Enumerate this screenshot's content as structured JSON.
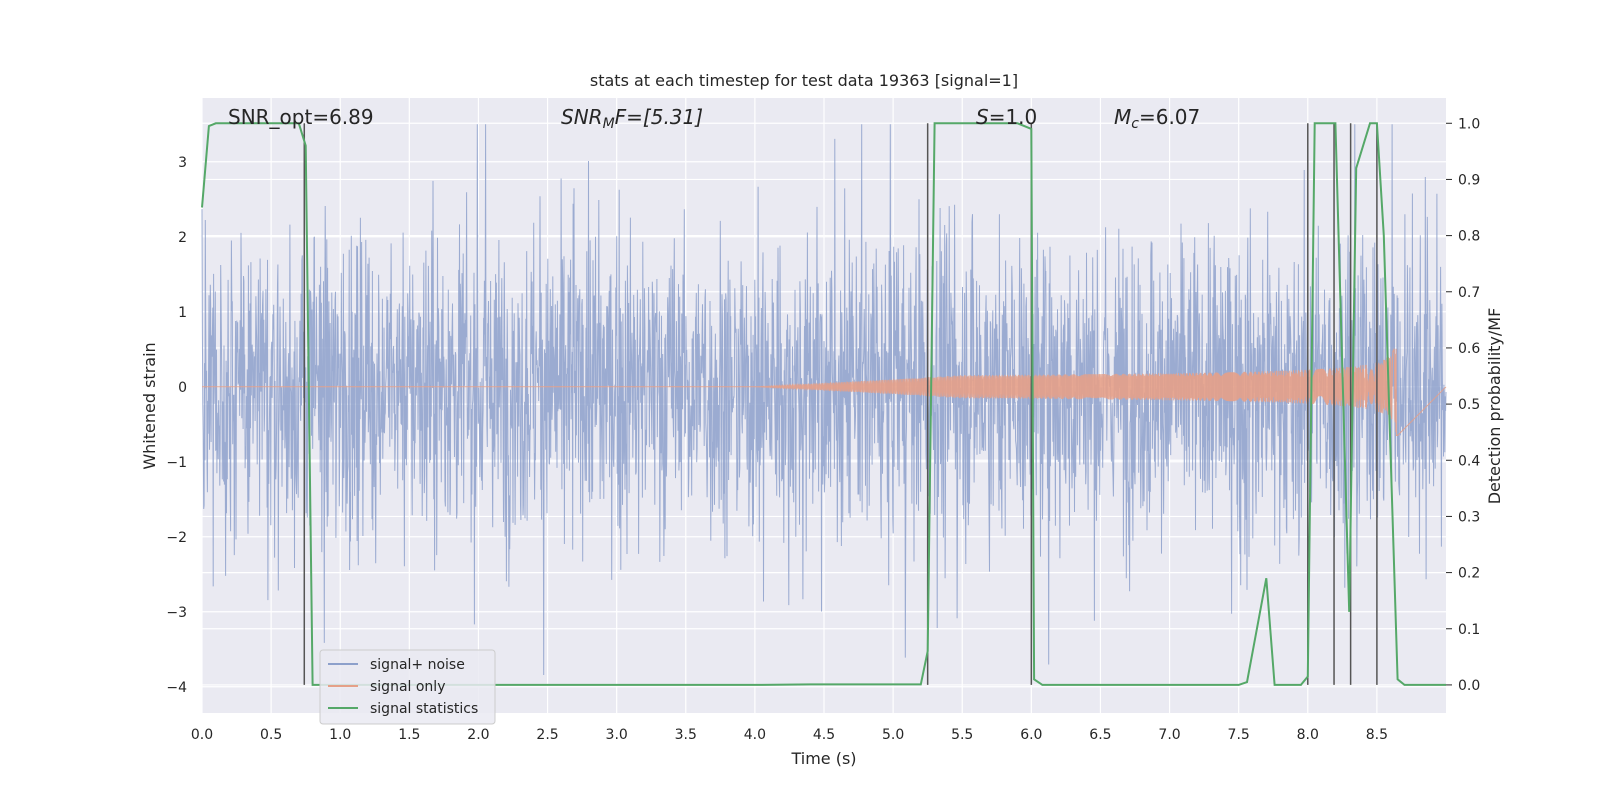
{
  "chart_data": {
    "type": "line",
    "title": "stats at each timestep for test data 19363 [signal=1]",
    "xlabel": "Time (s)",
    "ylabel_left": "Whitened strain",
    "ylabel_right": "Detection probability/MF",
    "xlim": [
      0.0,
      9.0
    ],
    "ylim_left": [
      -4.35,
      3.85
    ],
    "ylim_right": [
      -0.05,
      1.045
    ],
    "x_ticks": [
      0.0,
      0.5,
      1.0,
      1.5,
      2.0,
      2.5,
      3.0,
      3.5,
      4.0,
      4.5,
      5.0,
      5.5,
      6.0,
      6.5,
      7.0,
      7.5,
      8.0,
      8.5
    ],
    "x_tick_labels": [
      "0.0",
      "0.5",
      "1.0",
      "1.5",
      "2.0",
      "2.5",
      "3.0",
      "3.5",
      "4.0",
      "4.5",
      "5.0",
      "5.5",
      "6.0",
      "6.5",
      "7.0",
      "7.5",
      "8.0",
      "8.5"
    ],
    "y_left_ticks": [
      -4,
      -3,
      -2,
      -1,
      0,
      1,
      2,
      3
    ],
    "y_left_tick_labels": [
      "−4",
      "−3",
      "−2",
      "−1",
      "0",
      "1",
      "2",
      "3"
    ],
    "y_right_ticks": [
      0.0,
      0.1,
      0.2,
      0.3,
      0.4,
      0.5,
      0.6,
      0.7,
      0.8,
      0.9,
      1.0
    ],
    "y_right_tick_labels": [
      "0.0",
      "0.1",
      "0.2",
      "0.3",
      "0.4",
      "0.5",
      "0.6",
      "0.7",
      "0.8",
      "0.9",
      "1.0"
    ],
    "grid": true,
    "legend_placement": "lower-left",
    "annotations": {
      "snr_opt": "SNR_opt=6.89",
      "snr_mf_prefix": "SNR",
      "snr_mf_sub": "M",
      "snr_mf_suffix": "F=[5.31]",
      "s_prefix": "S",
      "s_suffix": "=1.0",
      "mc_prefix": "M",
      "mc_sub": "c",
      "mc_suffix": "=6.07"
    },
    "series": [
      {
        "name": "signal+ noise",
        "color": "#8da0cb",
        "axis": "left",
        "style": "dense noisy trace",
        "approx_amplitude": 2.0,
        "approx_peak": 3.5
      },
      {
        "name": "signal only",
        "color": "#e5a088",
        "axis": "left",
        "style": "chirp",
        "start": 4.0,
        "end": 8.65,
        "peak_amplitude": 0.65
      },
      {
        "name": "signal statistics",
        "color": "#55a868",
        "axis": "right",
        "x": [
          0.0,
          0.05,
          0.1,
          0.2,
          0.3,
          0.4,
          0.5,
          0.6,
          0.65,
          0.7,
          0.75,
          0.8,
          0.85,
          1.0,
          2.0,
          3.0,
          4.0,
          4.4,
          5.0,
          5.2,
          5.25,
          5.3,
          5.35,
          5.5,
          5.7,
          5.9,
          6.0,
          6.02,
          6.08,
          6.15,
          7.0,
          7.5,
          7.56,
          7.7,
          7.76,
          7.95,
          8.0,
          8.05,
          8.1,
          8.2,
          8.3,
          8.35,
          8.45,
          8.5,
          8.55,
          8.65,
          8.7,
          8.8,
          9.0
        ],
        "y": [
          0.85,
          0.995,
          1.0,
          1.0,
          1.0,
          1.0,
          1.0,
          1.0,
          1.0,
          1.0,
          0.96,
          0.0,
          0.0,
          0.0,
          0.0,
          0.0,
          0.0,
          0.001,
          0.001,
          0.001,
          0.06,
          1.0,
          1.0,
          1.0,
          1.0,
          1.0,
          0.99,
          0.01,
          0.0,
          0.0,
          0.0,
          0.0,
          0.005,
          0.19,
          0.0,
          0.0,
          0.015,
          1.0,
          1.0,
          1.0,
          0.13,
          0.92,
          1.0,
          1.0,
          0.8,
          0.01,
          0.0,
          0.0,
          0.0
        ]
      }
    ],
    "vertical_markers": [
      0.74,
      5.25,
      6.0,
      8.0,
      8.19,
      8.31,
      8.5
    ]
  }
}
